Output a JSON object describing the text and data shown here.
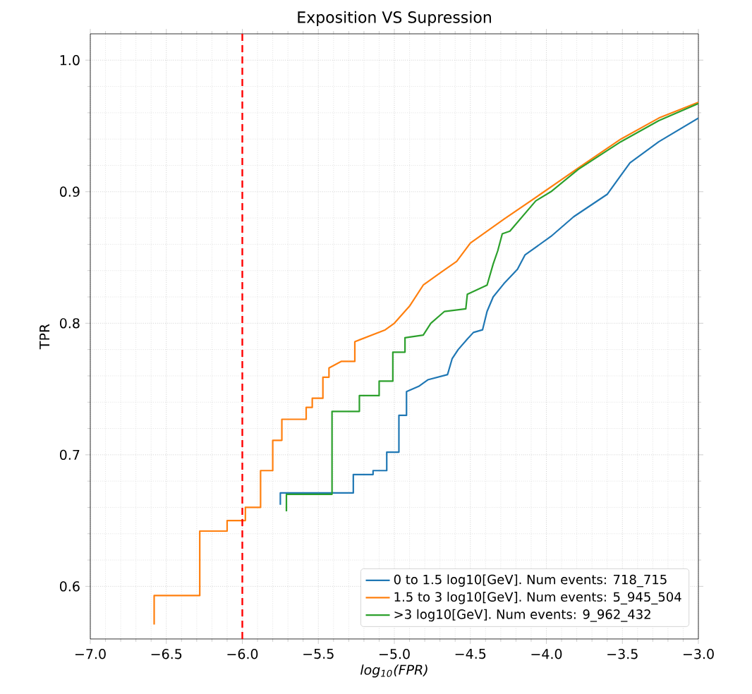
{
  "chart_data": {
    "type": "line",
    "title": "Exposition VS Supression",
    "xlabel": "log$_{10}$(FPR)",
    "ylabel": "TPR",
    "xlim": [
      -7.0,
      -3.0
    ],
    "ylim": [
      0.56,
      1.02
    ],
    "xticks": [
      {
        "value": -7.0,
        "label": "−7.0"
      },
      {
        "value": -6.5,
        "label": "−6.5"
      },
      {
        "value": -6.0,
        "label": "−6.0"
      },
      {
        "value": -5.5,
        "label": "−5.5"
      },
      {
        "value": -5.0,
        "label": "−5.0"
      },
      {
        "value": -4.5,
        "label": "−4.5"
      },
      {
        "value": -4.0,
        "label": "−4.0"
      },
      {
        "value": -3.5,
        "label": "−3.5"
      },
      {
        "value": -3.0,
        "label": "−3.0"
      }
    ],
    "yticks": [
      {
        "value": 0.6,
        "label": "0.6"
      },
      {
        "value": 0.7,
        "label": "0.7"
      },
      {
        "value": 0.8,
        "label": "0.8"
      },
      {
        "value": 0.9,
        "label": "0.9"
      },
      {
        "value": 1.0,
        "label": "1.0"
      }
    ],
    "grid": true,
    "legend": "bottom right",
    "line_style": "solid",
    "ref_lines": [
      {
        "axis": "x",
        "value": -6.0,
        "color": "#ff0000",
        "line_style": "dashed"
      }
    ],
    "series": [
      {
        "name": "0 to 1.5 log10[GeV]. Num events: 718_715",
        "color": "#1f77b4",
        "x": [
          -5.75,
          -5.75,
          -5.27,
          -5.27,
          -5.14,
          -5.14,
          -5.05,
          -5.05,
          -4.97,
          -4.97,
          -4.92,
          -4.92,
          -4.84,
          -4.78,
          -4.65,
          -4.62,
          -4.58,
          -4.52,
          -4.48,
          -4.42,
          -4.39,
          -4.35,
          -4.28,
          -4.19,
          -4.14,
          -3.97,
          -3.82,
          -3.6,
          -3.45,
          -3.26,
          -3.0
        ],
        "values": [
          0.662,
          0.671,
          0.671,
          0.685,
          0.685,
          0.688,
          0.688,
          0.702,
          0.702,
          0.73,
          0.73,
          0.748,
          0.752,
          0.757,
          0.761,
          0.773,
          0.78,
          0.788,
          0.793,
          0.795,
          0.809,
          0.82,
          0.83,
          0.841,
          0.852,
          0.866,
          0.881,
          0.898,
          0.922,
          0.938,
          0.956
        ]
      },
      {
        "name": "1.5 to 3 log10[GeV]. Num events: 5_945_504",
        "color": "#ff7f0e",
        "x": [
          -6.58,
          -6.58,
          -6.28,
          -6.28,
          -6.1,
          -6.1,
          -5.98,
          -5.98,
          -5.88,
          -5.88,
          -5.8,
          -5.8,
          -5.74,
          -5.74,
          -5.58,
          -5.58,
          -5.54,
          -5.54,
          -5.47,
          -5.47,
          -5.43,
          -5.43,
          -5.35,
          -5.26,
          -5.26,
          -5.06,
          -5.0,
          -4.9,
          -4.81,
          -4.69,
          -4.59,
          -4.5,
          -4.28,
          -4.04,
          -3.79,
          -3.51,
          -3.26,
          -3.0
        ],
        "values": [
          0.571,
          0.593,
          0.593,
          0.642,
          0.642,
          0.65,
          0.65,
          0.66,
          0.66,
          0.688,
          0.688,
          0.711,
          0.711,
          0.727,
          0.727,
          0.736,
          0.736,
          0.743,
          0.743,
          0.759,
          0.759,
          0.766,
          0.771,
          0.771,
          0.786,
          0.795,
          0.8,
          0.813,
          0.829,
          0.839,
          0.847,
          0.861,
          0.879,
          0.898,
          0.918,
          0.94,
          0.956,
          0.968
        ]
      },
      {
        "name": ">3 log10[GeV]. Num events: 9_962_432",
        "color": "#2ca02c",
        "x": [
          -5.71,
          -5.71,
          -5.41,
          -5.41,
          -5.23,
          -5.23,
          -5.1,
          -5.1,
          -5.01,
          -5.01,
          -4.93,
          -4.93,
          -4.81,
          -4.76,
          -4.67,
          -4.53,
          -4.52,
          -4.39,
          -4.35,
          -4.32,
          -4.29,
          -4.24,
          -4.07,
          -3.97,
          -3.79,
          -3.51,
          -3.26,
          -3.0
        ],
        "values": [
          0.657,
          0.67,
          0.67,
          0.733,
          0.733,
          0.745,
          0.745,
          0.756,
          0.756,
          0.778,
          0.778,
          0.789,
          0.791,
          0.8,
          0.809,
          0.811,
          0.822,
          0.829,
          0.845,
          0.855,
          0.868,
          0.87,
          0.893,
          0.9,
          0.917,
          0.938,
          0.954,
          0.967
        ]
      }
    ]
  }
}
